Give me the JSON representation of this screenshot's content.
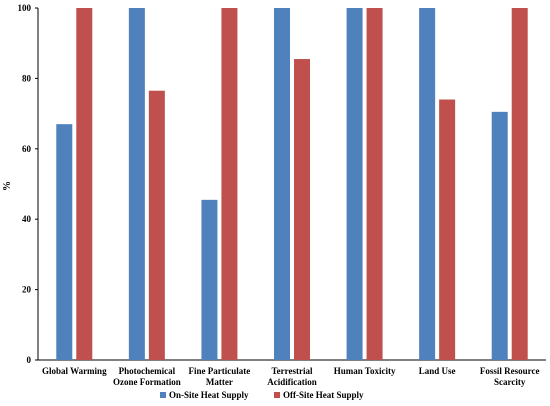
{
  "chart_data": {
    "type": "bar",
    "ylabel": "%",
    "xlabel": "",
    "title": "",
    "ylim": [
      0,
      100
    ],
    "yticks": [
      0,
      20,
      40,
      60,
      80,
      100
    ],
    "grid": false,
    "legend_position": "bottom",
    "categories": [
      [
        "Global Warming"
      ],
      [
        "Photochemical",
        "Ozone Formation"
      ],
      [
        "Fine Particulate",
        "Matter"
      ],
      [
        "Terrestrial",
        "Acidification"
      ],
      [
        "Human Toxicity"
      ],
      [
        "Land Use"
      ],
      [
        "Fossil Resource",
        "Scarcity"
      ]
    ],
    "series": [
      {
        "name": "On-Site Heat Supply",
        "color": "#4F81BD",
        "values": [
          67,
          100,
          45.5,
          100,
          100,
          100,
          70.5
        ]
      },
      {
        "name": "Off-Site Heat Supply",
        "color": "#C0504D",
        "values": [
          100,
          76.5,
          100,
          85.5,
          100,
          74,
          100
        ]
      }
    ]
  }
}
